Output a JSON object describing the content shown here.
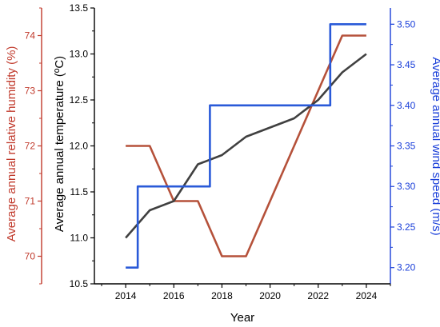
{
  "chart_data": {
    "type": "line",
    "xlabel": "Year",
    "x": [
      2014,
      2015,
      2016,
      2017,
      2018,
      2019,
      2020,
      2021,
      2022,
      2023,
      2024
    ],
    "xlim": [
      2012.7,
      2025
    ],
    "xticks": [
      2014,
      2016,
      2018,
      2020,
      2022,
      2024
    ],
    "axes": {
      "temperature": {
        "label": "Average annual temperature (ºC)",
        "ylim": [
          10.5,
          13.5
        ],
        "ticks": [
          "10.5",
          "11.0",
          "11.5",
          "12.0",
          "12.5",
          "13.0",
          "13.5"
        ],
        "color": "#000000"
      },
      "humidity": {
        "label": "Average annual relative humidity (%)",
        "ylim": [
          69.5,
          74.5
        ],
        "ticks": [
          "70",
          "71",
          "72",
          "73",
          "74"
        ],
        "color": "#c0392b"
      },
      "wind": {
        "label": "Average annual wind speed (m/s)",
        "ylim": [
          3.18,
          3.52
        ],
        "ticks": [
          "3.20",
          "3.25",
          "3.30",
          "3.35",
          "3.40",
          "3.45",
          "3.50"
        ],
        "color": "#1a3fd9"
      }
    },
    "series": [
      {
        "axis": "humidity",
        "color": "#b5513a",
        "step": false,
        "x": [
          2014,
          2015,
          2016,
          2017,
          2018,
          2019,
          2023,
          2024
        ],
        "values": [
          72.0,
          72.0,
          71.0,
          71.0,
          70.0,
          70.0,
          74.0,
          74.0
        ]
      },
      {
        "axis": "temperature",
        "color": "#404040",
        "step": false,
        "x": [
          2014,
          2015,
          2016,
          2017,
          2018,
          2019,
          2020,
          2021,
          2022,
          2023,
          2024
        ],
        "values": [
          11.0,
          11.3,
          11.4,
          11.8,
          11.9,
          12.1,
          12.2,
          12.3,
          12.5,
          12.8,
          13.0
        ]
      },
      {
        "axis": "wind",
        "color": "#2a5ad8",
        "step": true,
        "x": [
          2014,
          2015,
          2016,
          2017,
          2018,
          2019,
          2020,
          2021,
          2022,
          2023,
          2024
        ],
        "values": [
          3.2,
          3.3,
          3.3,
          3.3,
          3.4,
          3.4,
          3.4,
          3.4,
          3.4,
          3.5,
          3.5
        ]
      }
    ],
    "grid": false
  }
}
